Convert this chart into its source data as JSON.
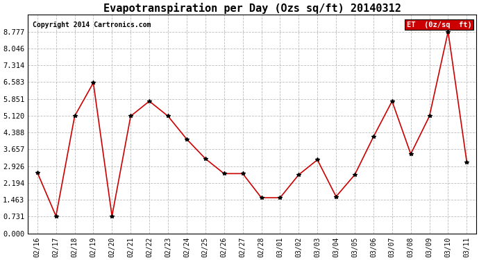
{
  "title": "Evapotranspiration per Day (Ozs sq/ft) 20140312",
  "copyright": "Copyright 2014 Cartronics.com",
  "legend_label": "ET  (0z/sq  ft)",
  "x_labels": [
    "02/16",
    "02/17",
    "02/18",
    "02/19",
    "02/20",
    "02/21",
    "02/22",
    "02/23",
    "02/24",
    "02/25",
    "02/26",
    "02/27",
    "02/28",
    "03/01",
    "03/02",
    "03/03",
    "03/04",
    "03/05",
    "03/06",
    "03/07",
    "03/08",
    "03/09",
    "03/10",
    "03/11"
  ],
  "y_values": [
    2.65,
    0.75,
    5.1,
    6.55,
    0.75,
    5.1,
    5.75,
    5.1,
    4.1,
    3.25,
    2.6,
    2.6,
    1.55,
    1.55,
    2.55,
    3.2,
    1.6,
    2.55,
    4.2,
    5.75,
    3.45,
    5.1,
    8.777,
    3.1
  ],
  "ylim": [
    0.0,
    9.508
  ],
  "yticks": [
    0.0,
    0.731,
    1.463,
    2.194,
    2.926,
    3.657,
    4.388,
    5.12,
    5.851,
    6.583,
    7.314,
    8.046,
    8.777
  ],
  "line_color": "#cc0000",
  "marker_color": "#000000",
  "bg_color": "#ffffff",
  "grid_color": "#bbbbbb",
  "title_fontsize": 11,
  "copyright_fontsize": 7,
  "tick_fontsize": 7,
  "ytick_fontsize": 7.5,
  "legend_bg": "#cc0000",
  "legend_text_color": "#ffffff",
  "legend_fontsize": 7.5
}
